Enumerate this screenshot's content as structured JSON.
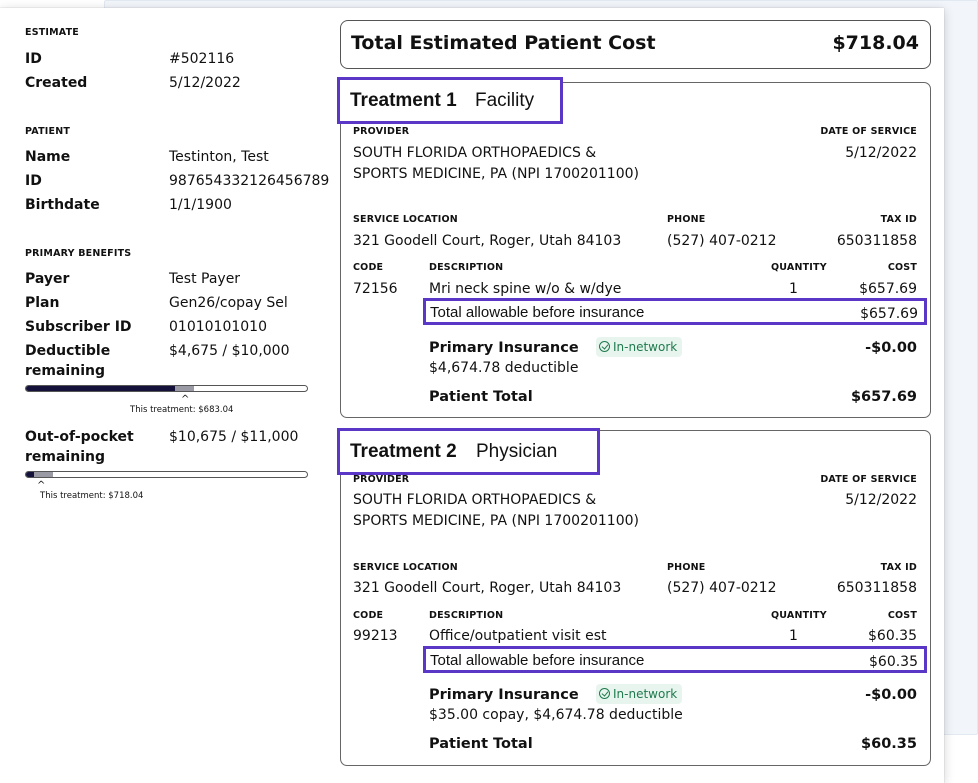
{
  "estimate": {
    "heading": "ESTIMATE",
    "id_label": "ID",
    "id_value": "#502116",
    "created_label": "Created",
    "created_value": "5/12/2022"
  },
  "patient": {
    "heading": "PATIENT",
    "name_label": "Name",
    "name_value": "Testinton, Test",
    "id_label": "ID",
    "id_value": "987654332126456789",
    "birthdate_label": "Birthdate",
    "birthdate_value": "1/1/1900"
  },
  "benefits": {
    "heading": "PRIMARY BENEFITS",
    "payer_label": "Payer",
    "payer_value": "Test Payer",
    "plan_label": "Plan",
    "plan_value": "Gen26/copay Sel",
    "subscriber_label": "Subscriber ID",
    "subscriber_value": "01010101010",
    "deductible_label": "Deductible remaining",
    "deductible_value": "$4,675 / $10,000",
    "deductible_progress": {
      "used_fraction": 0.53,
      "this_treatment_fraction": 0.068,
      "caption": "This treatment: $683.04"
    },
    "oop_label": "Out-of-pocket remaining",
    "oop_value": "$10,675 / $11,000",
    "oop_progress": {
      "used_fraction": 0.03,
      "this_treatment_fraction": 0.065,
      "caption": "This treatment: $718.04"
    }
  },
  "total": {
    "label": "Total Estimated Patient Cost",
    "value": "$718.04"
  },
  "treatments": [
    {
      "number_label": "Treatment 1",
      "kind": "Facility",
      "provider_h": "PROVIDER",
      "provider": "SOUTH FLORIDA ORTHOPAEDICS & SPORTS MEDICINE, PA (NPI 1700201100)",
      "dos_h": "DATE OF SERVICE",
      "dos": "5/12/2022",
      "loc_h": "SERVICE LOCATION",
      "location": "321 Goodell Court, Roger, Utah 84103",
      "phone_h": "PHONE",
      "phone": "(527) 407-0212",
      "tax_h": "TAX ID",
      "tax": "650311858",
      "code_h": "CODE",
      "desc_h": "DESCRIPTION",
      "qty_h": "QUANTITY",
      "cost_h": "COST",
      "code": "72156",
      "desc": "Mri neck spine w/o & w/dye",
      "qty": "1",
      "cost": "$657.69",
      "allowable_label": "Total allowable before insurance",
      "allowable_value": "$657.69",
      "ins_label": "Primary Insurance",
      "network": "In-network",
      "ins_value": "-$0.00",
      "ins_detail": "$4,674.78 deductible",
      "patient_total_label": "Patient Total",
      "patient_total": "$657.69"
    },
    {
      "number_label": "Treatment 2",
      "kind": "Physician",
      "provider_h": "PROVIDER",
      "provider": "SOUTH FLORIDA ORTHOPAEDICS & SPORTS MEDICINE, PA (NPI 1700201100)",
      "dos_h": "DATE OF SERVICE",
      "dos": "5/12/2022",
      "loc_h": "SERVICE LOCATION",
      "location": "321 Goodell Court, Roger, Utah 84103",
      "phone_h": "PHONE",
      "phone": "(527) 407-0212",
      "tax_h": "TAX ID",
      "tax": "650311858",
      "code_h": "CODE",
      "desc_h": "DESCRIPTION",
      "qty_h": "QUANTITY",
      "cost_h": "COST",
      "code": "99213",
      "desc": "Office/outpatient visit est",
      "qty": "1",
      "cost": "$60.35",
      "allowable_label": "Total allowable before insurance",
      "allowable_value": "$60.35",
      "ins_label": "Primary Insurance",
      "network": "In-network",
      "ins_value": "-$0.00",
      "ins_detail": "$35.00 copay, $4,674.78 deductible",
      "patient_total_label": "Patient Total",
      "patient_total": "$60.35"
    }
  ],
  "colors": {
    "accent": "#5b37c8",
    "bar_used": "#14123a",
    "bar_this": "#9a9aa4",
    "network_green": "#1f7a4d"
  }
}
